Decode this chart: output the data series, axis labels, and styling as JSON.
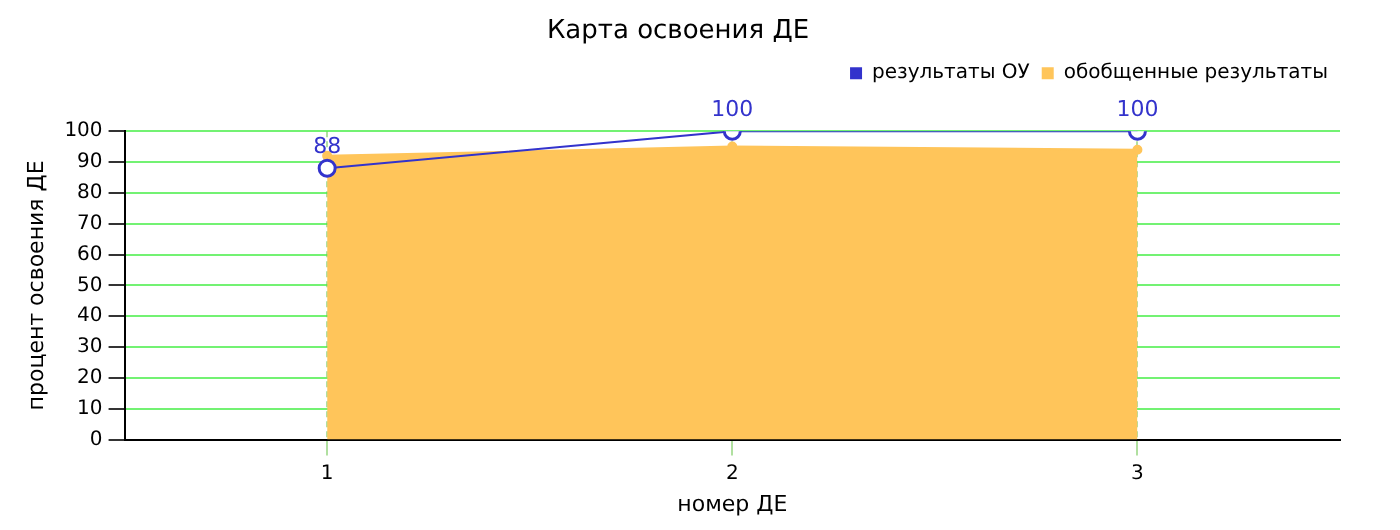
{
  "chart_data": {
    "type": "line",
    "title": "Карта освоения ДЕ",
    "xlabel": "номер ДЕ",
    "ylabel": "процент освоения ДЕ",
    "categories": [
      "1",
      "2",
      "3"
    ],
    "series": [
      {
        "name": "результаты ОУ",
        "color": "#3333cc",
        "values": [
          88,
          100,
          100
        ],
        "value_labels": [
          "88",
          "100",
          "100"
        ],
        "marker": "circle"
      },
      {
        "name": "обобщенные результаты",
        "type": "area",
        "color": "#ffc55a",
        "values": [
          92,
          95,
          94
        ]
      }
    ],
    "ylim": [
      0,
      100
    ],
    "yticks": [
      0,
      10,
      20,
      30,
      40,
      50,
      60,
      70,
      80,
      90,
      100
    ],
    "grid": true,
    "legend": "top right"
  }
}
